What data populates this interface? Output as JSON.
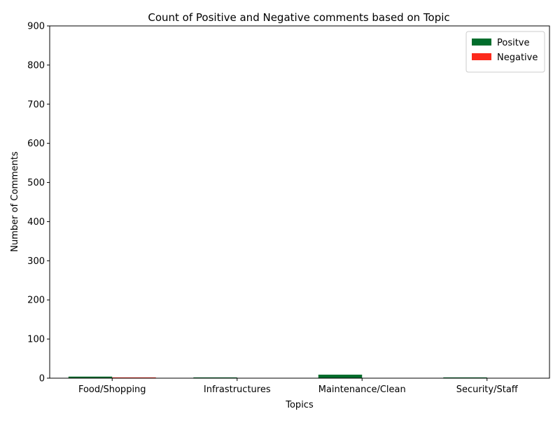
{
  "chart_data": {
    "type": "bar",
    "title": "Count of Positive and Negative comments based on Topic",
    "xlabel": "Topics",
    "ylabel": "Number of Comments",
    "categories": [
      "Food/Shopping",
      "Infrastructures",
      "Maintenance/Clean",
      "Security/Staff"
    ],
    "series": [
      {
        "name": "Positve",
        "color": "#006d2c",
        "values": [
          4,
          2,
          9,
          2
        ]
      },
      {
        "name": "Negative",
        "color": "#fc2a1c",
        "values": [
          2,
          0,
          0,
          0
        ]
      }
    ],
    "ylim": [
      0,
      900
    ],
    "yticks": [
      0,
      100,
      200,
      300,
      400,
      500,
      600,
      700,
      800,
      900
    ],
    "legend_position": "top-right",
    "grid": false
  }
}
